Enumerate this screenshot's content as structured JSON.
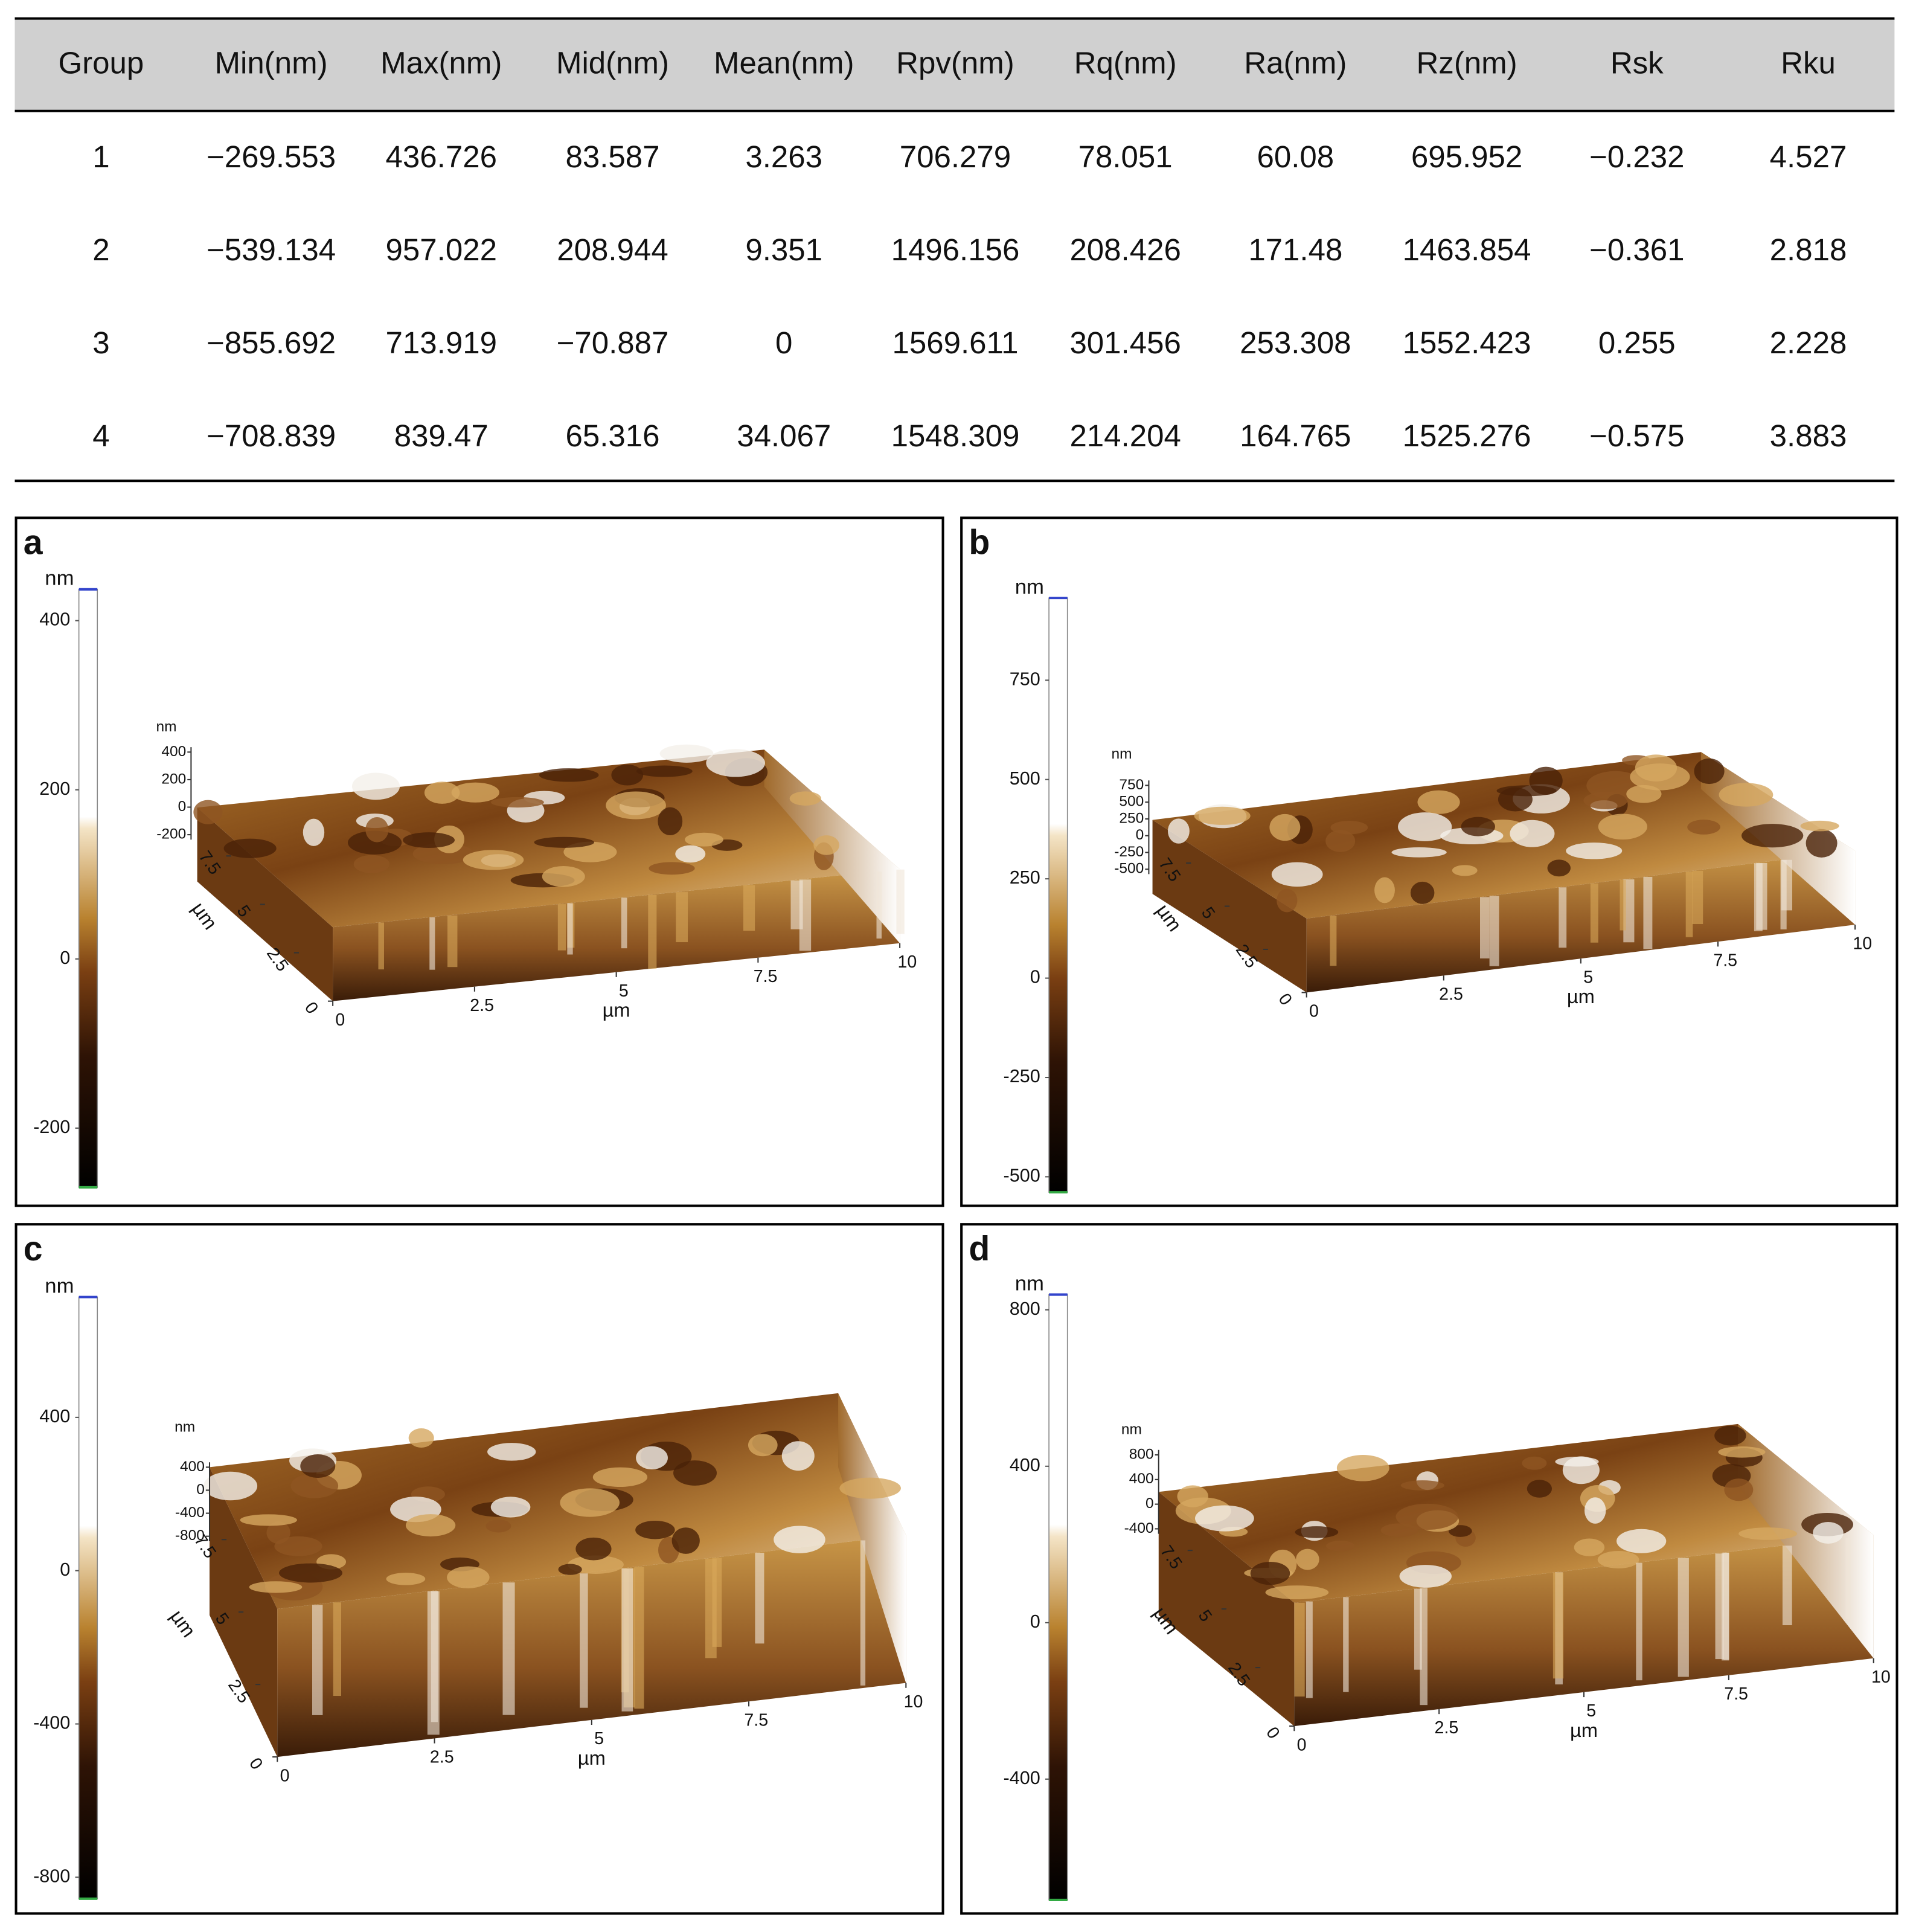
{
  "table": {
    "headers": [
      "Group",
      "Min(nm)",
      "Max(nm)",
      "Mid(nm)",
      "Mean(nm)",
      "Rpv(nm)",
      "Rq(nm)",
      "Ra(nm)",
      "Rz(nm)",
      "Rsk",
      "Rku"
    ],
    "rows": [
      [
        "1",
        "−269.553",
        "436.726",
        "83.587",
        "3.263",
        "706.279",
        "78.051",
        "60.08",
        "695.952",
        "−0.232",
        "4.527"
      ],
      [
        "2",
        "−539.134",
        "957.022",
        "208.944",
        "9.351",
        "1496.156",
        "208.426",
        "171.48",
        "1463.854",
        "−0.361",
        "2.818"
      ],
      [
        "3",
        "−855.692",
        "713.919",
        "−70.887",
        "0",
        "1569.611",
        "301.456",
        "253.308",
        "1552.423",
        "0.255",
        "2.228"
      ],
      [
        "4",
        "−708.839",
        "839.47",
        "65.316",
        "34.067",
        "1548.309",
        "214.204",
        "164.765",
        "1525.276",
        "−0.575",
        "3.883"
      ]
    ]
  },
  "panels": [
    {
      "label": "a",
      "colorbar": {
        "unit": "nm",
        "zlim": [
          -270,
          437
        ],
        "ticks": [
          400,
          200,
          0,
          -200
        ]
      },
      "plot": {
        "z_unit": "nm",
        "z_ticks": [
          400,
          200,
          0,
          -200
        ],
        "x_ticks": [
          0,
          2.5,
          5,
          7.5,
          10
        ],
        "x_unit": "µm",
        "y_ticks": [
          0,
          2.5,
          5,
          7.5
        ],
        "y_unit": "µm"
      }
    },
    {
      "label": "b",
      "colorbar": {
        "unit": "nm",
        "zlim": [
          -539,
          957
        ],
        "ticks": [
          750,
          500,
          250,
          0,
          -250,
          -500
        ]
      },
      "plot": {
        "z_unit": "nm",
        "z_ticks": [
          750,
          500,
          250,
          0,
          -250,
          -500
        ],
        "x_ticks": [
          0,
          2.5,
          5,
          7.5,
          10
        ],
        "x_unit": "µm",
        "y_ticks": [
          0,
          2.5,
          5,
          7.5
        ],
        "y_unit": "µm"
      }
    },
    {
      "label": "c",
      "colorbar": {
        "unit": "nm",
        "zlim": [
          -856,
          714
        ],
        "ticks": [
          400,
          0,
          -400,
          -800
        ]
      },
      "plot": {
        "z_unit": "nm",
        "z_ticks": [
          400,
          0,
          -400,
          -800
        ],
        "x_ticks": [
          0,
          2.5,
          5,
          7.5,
          10
        ],
        "x_unit": "µm",
        "y_ticks": [
          0,
          2.5,
          5,
          7.5
        ],
        "y_unit": "µm"
      }
    },
    {
      "label": "d",
      "colorbar": {
        "unit": "nm",
        "zlim": [
          -709,
          839
        ],
        "ticks": [
          800,
          400,
          0,
          -400
        ]
      },
      "plot": {
        "z_unit": "nm",
        "z_ticks": [
          800,
          400,
          0,
          -400
        ],
        "x_ticks": [
          0,
          2.5,
          5,
          7.5,
          10
        ],
        "x_unit": "µm",
        "y_ticks": [
          0,
          2.5,
          5,
          7.5
        ],
        "y_unit": "µm"
      }
    }
  ]
}
